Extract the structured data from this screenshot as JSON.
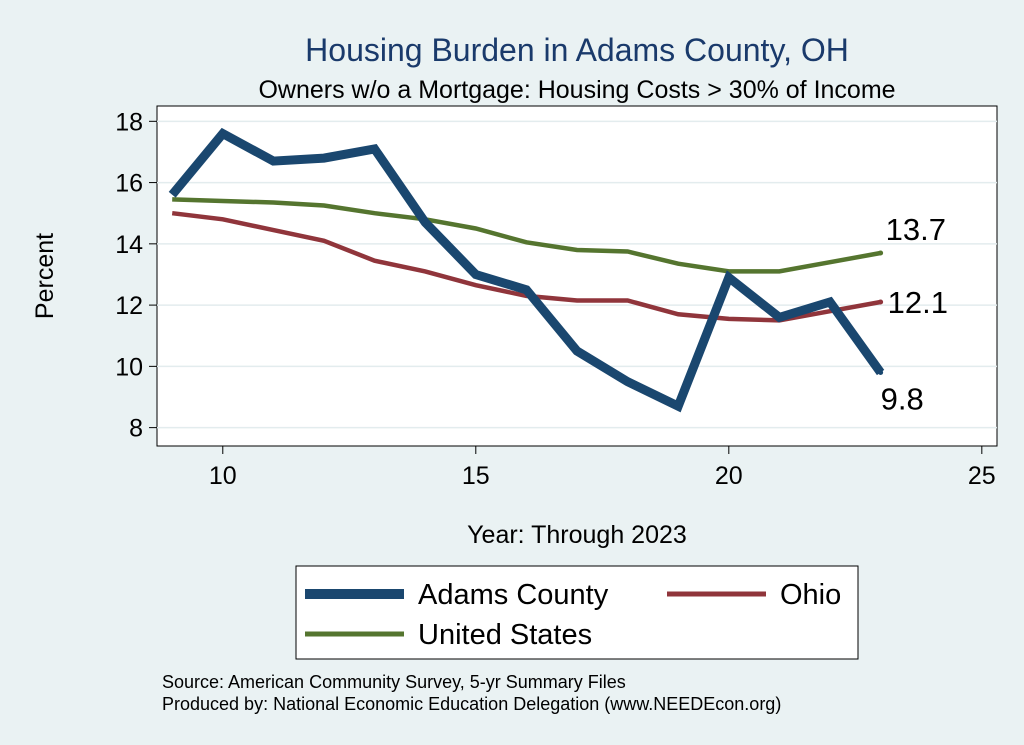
{
  "chart_data": {
    "type": "line",
    "title": "Housing Burden in Adams County, OH",
    "subtitle": "Owners w/o a Mortgage: Housing Costs > 30% of Income",
    "xlabel": "Year: Through 2023",
    "ylabel": "Percent",
    "xlim": [
      8.7,
      25.3
    ],
    "ylim": [
      7.4,
      18.5
    ],
    "xticks": [
      10,
      15,
      20,
      25
    ],
    "yticks": [
      8,
      10,
      12,
      14,
      16,
      18
    ],
    "grid": true,
    "x": [
      9,
      10,
      11,
      12,
      13,
      14,
      15,
      16,
      17,
      18,
      19,
      20,
      21,
      22,
      23
    ],
    "series": [
      {
        "name": "Adams County",
        "color": "#1a476f",
        "values": [
          15.6,
          17.6,
          16.7,
          16.8,
          17.1,
          14.7,
          13.0,
          12.5,
          10.5,
          9.5,
          8.7,
          12.9,
          11.6,
          12.1,
          9.8
        ],
        "end_label": "9.8"
      },
      {
        "name": "Ohio",
        "color": "#90353b",
        "values": [
          15.0,
          14.8,
          14.45,
          14.1,
          13.45,
          13.1,
          12.65,
          12.3,
          12.15,
          12.15,
          11.7,
          11.55,
          11.5,
          11.8,
          12.1
        ],
        "end_label": "12.1"
      },
      {
        "name": "United States",
        "color": "#55752f",
        "values": [
          15.45,
          15.4,
          15.35,
          15.25,
          15.0,
          14.8,
          14.5,
          14.05,
          13.8,
          13.75,
          13.35,
          13.1,
          13.1,
          13.4,
          13.7
        ],
        "end_label": "13.7"
      }
    ],
    "legend": {
      "position": "bottom",
      "entries": [
        "Adams County",
        "Ohio",
        "United States"
      ]
    }
  },
  "footer": {
    "source": "Source: American Community Survey, 5-yr Summary Files",
    "produced_by": "Produced by: National Economic Education Delegation (www.NEEDEcon.org)"
  },
  "colors": {
    "background": "#eaf2f3",
    "plot_background": "#ffffff",
    "title": "#1a3a6b"
  }
}
